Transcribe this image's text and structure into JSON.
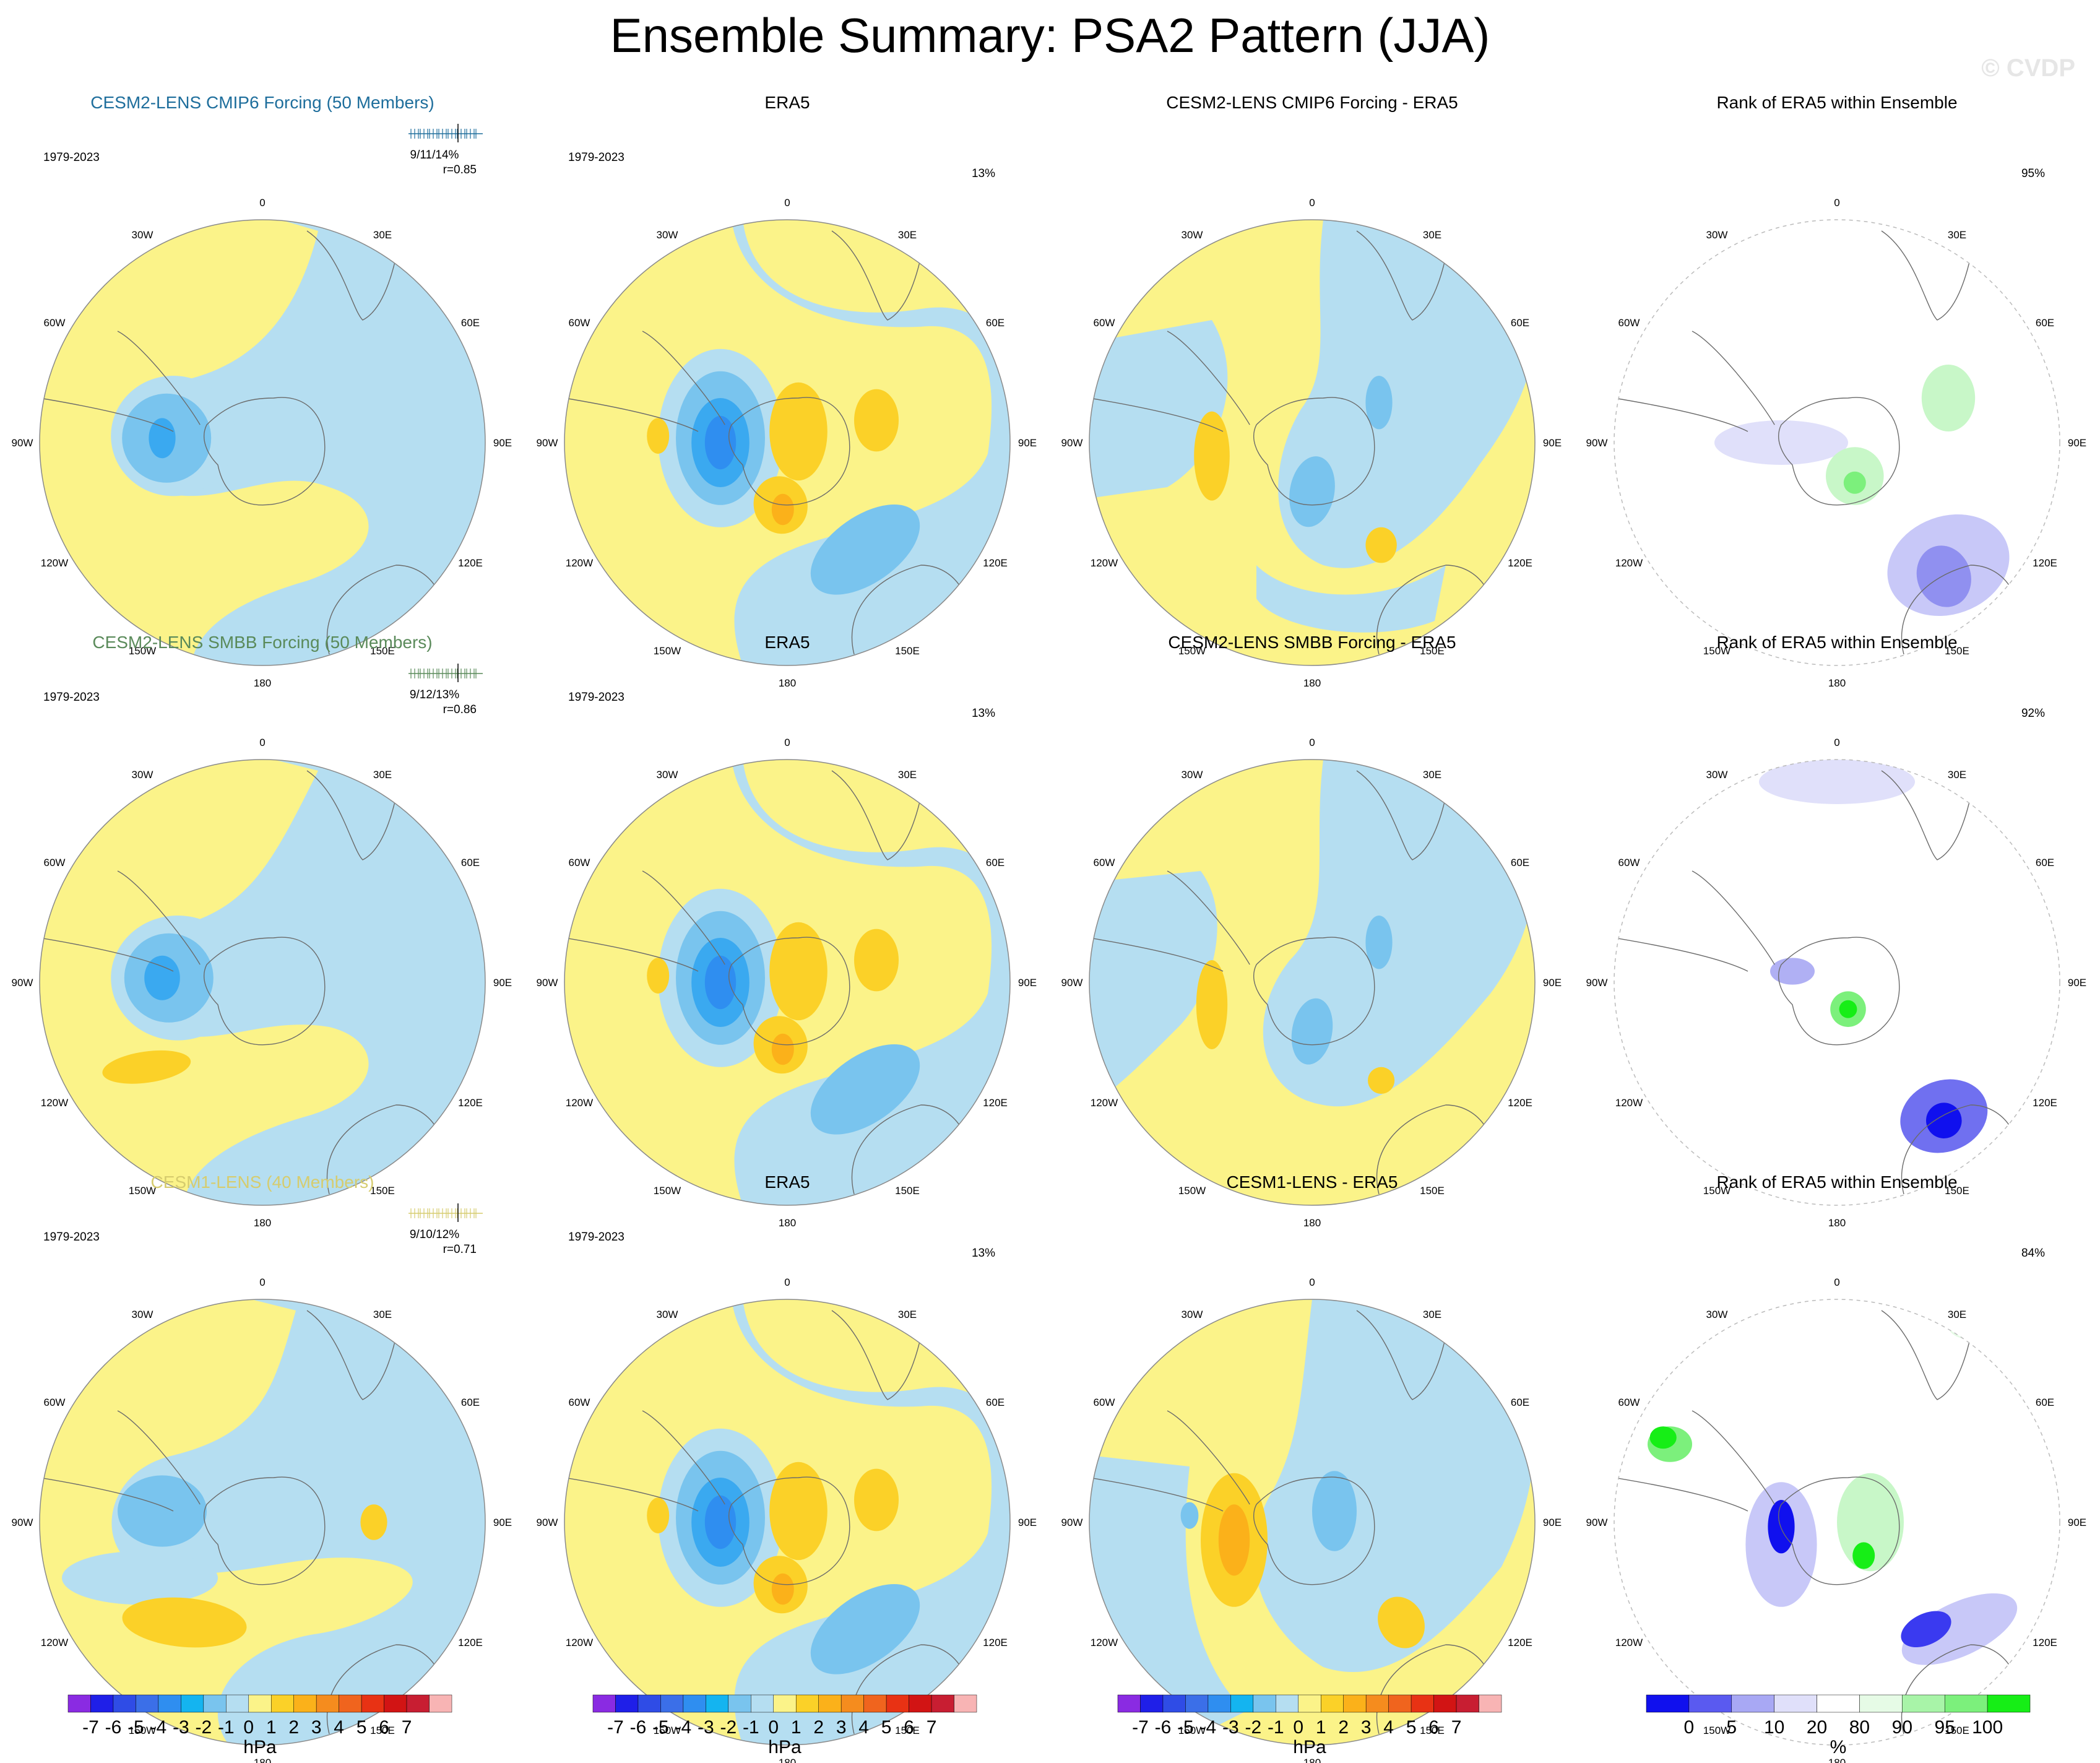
{
  "title": "Ensemble Summary: PSA2 Pattern (JJA)",
  "watermark": "© CVDP",
  "colors": {
    "yellow": "#fbf389",
    "lightblue": "#b5def1",
    "blue1": "#79c4ee",
    "blue2": "#3aa9f0",
    "blue3": "#2f8ef0",
    "orange1": "#fbd128",
    "orange2": "#fbb11a",
    "rank_green": "#16ee16",
    "rank_blue": "#1010ee"
  },
  "chart_data": [
    {
      "type": "map",
      "row": 0,
      "col": 0,
      "title": "CESM2-LENS CMIP6 Forcing (50 Members)",
      "title_color": "#1e6e9c",
      "period": "1979-2023",
      "stat_top": "9/11/14%",
      "stat_bottom": "r=0.85",
      "unit": "hPa",
      "pattern": "cesm2_cmip6"
    },
    {
      "type": "map",
      "row": 0,
      "col": 1,
      "title": "ERA5",
      "title_color": "#000000",
      "period": "1979-2023",
      "pct": "13%",
      "unit": "hPa",
      "pattern": "era5"
    },
    {
      "type": "map",
      "row": 0,
      "col": 2,
      "title": "CESM2-LENS CMIP6 Forcing - ERA5",
      "title_color": "#000000",
      "period": "",
      "unit": "hPa",
      "pattern": "diff1"
    },
    {
      "type": "map",
      "row": 0,
      "col": 3,
      "title": "Rank of ERA5 within Ensemble",
      "title_color": "#000000",
      "period": "",
      "pct": "95%",
      "unit": "%",
      "pattern": "rank1"
    },
    {
      "type": "map",
      "row": 1,
      "col": 0,
      "title": "CESM2-LENS SMBB Forcing (50 Members)",
      "title_color": "#5a8a5a",
      "period": "1979-2023",
      "stat_top": "9/12/13%",
      "stat_bottom": "r=0.86",
      "unit": "hPa",
      "pattern": "cesm2_smbb"
    },
    {
      "type": "map",
      "row": 1,
      "col": 1,
      "title": "ERA5",
      "title_color": "#000000",
      "period": "1979-2023",
      "pct": "13%",
      "unit": "hPa",
      "pattern": "era5"
    },
    {
      "type": "map",
      "row": 1,
      "col": 2,
      "title": "CESM2-LENS SMBB Forcing - ERA5",
      "title_color": "#000000",
      "period": "",
      "unit": "hPa",
      "pattern": "diff2"
    },
    {
      "type": "map",
      "row": 1,
      "col": 3,
      "title": "Rank of ERA5 within Ensemble",
      "title_color": "#000000",
      "period": "",
      "pct": "92%",
      "unit": "%",
      "pattern": "rank2"
    },
    {
      "type": "map",
      "row": 2,
      "col": 0,
      "title": "CESM1-LENS (40 Members)",
      "title_color": "#d6cc6e",
      "period": "1979-2023",
      "stat_top": "9/10/12%",
      "stat_bottom": "r=0.71",
      "unit": "hPa",
      "pattern": "cesm1"
    },
    {
      "type": "map",
      "row": 2,
      "col": 1,
      "title": "ERA5",
      "title_color": "#000000",
      "period": "1979-2023",
      "pct": "13%",
      "unit": "hPa",
      "pattern": "era5"
    },
    {
      "type": "map",
      "row": 2,
      "col": 2,
      "title": "CESM1-LENS - ERA5",
      "title_color": "#000000",
      "period": "",
      "unit": "hPa",
      "pattern": "diff3"
    },
    {
      "type": "map",
      "row": 2,
      "col": 3,
      "title": "Rank of ERA5 within Ensemble",
      "title_color": "#000000",
      "period": "",
      "pct": "84%",
      "unit": "%",
      "pattern": "rank3"
    }
  ],
  "lon_labels": [
    "0",
    "30E",
    "60E",
    "90E",
    "120E",
    "150E",
    "180",
    "150W",
    "120W",
    "90W",
    "60W",
    "30W"
  ],
  "colorbar_hpa": {
    "unit": "hPa",
    "ticks": [
      "-7",
      "-6",
      "-5",
      "-4",
      "-3",
      "-2",
      "-1",
      "0",
      "1",
      "2",
      "3",
      "4",
      "5",
      "6",
      "7"
    ],
    "colors": [
      "#8a2be2",
      "#1f1fe8",
      "#2f4ce6",
      "#3b6fe8",
      "#2f8ef0",
      "#14b4f0",
      "#79c4ee",
      "#b5def1",
      "#fbf389",
      "#fbd128",
      "#fbb11a",
      "#f58c1e",
      "#f0641e",
      "#e83214",
      "#d21414",
      "#c81e32",
      "#f8b4b4"
    ]
  },
  "colorbar_rank": {
    "unit": "%",
    "ticks": [
      "0",
      "5",
      "10",
      "20",
      "80",
      "90",
      "95",
      "100"
    ],
    "colors": [
      "#1010ee",
      "#5a5af0",
      "#a8a8f4",
      "#e0e0fa",
      "#ffffff",
      "#e6fbe6",
      "#a8f4a8",
      "#7cf07c",
      "#16ee16"
    ]
  }
}
